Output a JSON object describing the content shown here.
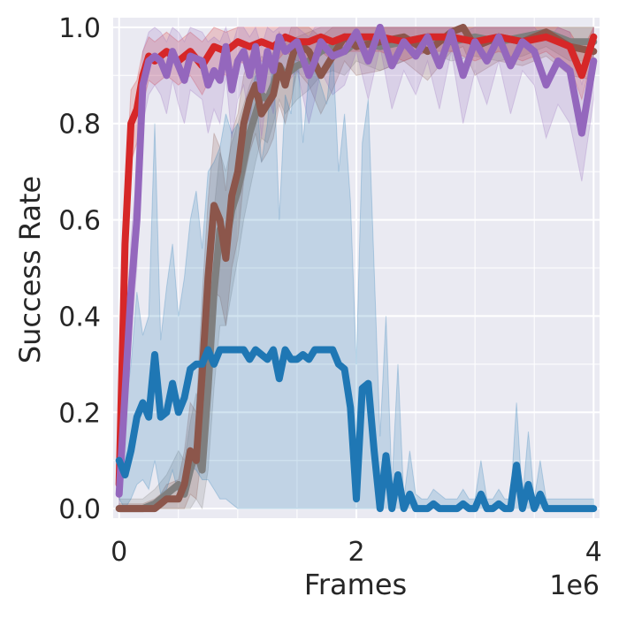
{
  "chart_data": {
    "type": "line",
    "xlabel": "Frames",
    "ylabel": "Success Rate",
    "x_multiplier_label": "1e6",
    "xlim": [
      -0.05,
      4.05
    ],
    "ylim": [
      -0.02,
      1.02
    ],
    "x_ticks": [
      {
        "value": 0,
        "label": "0"
      },
      {
        "value": 2,
        "label": "2"
      },
      {
        "value": 4,
        "label": "4"
      }
    ],
    "y_ticks": [
      {
        "value": 0.0,
        "label": "0.0"
      },
      {
        "value": 0.2,
        "label": "0.2"
      },
      {
        "value": 0.4,
        "label": "0.4"
      },
      {
        "value": 0.6,
        "label": "0.6"
      },
      {
        "value": 0.8,
        "label": "0.8"
      },
      {
        "value": 1.0,
        "label": "1.0"
      }
    ],
    "grid": true,
    "legend": "none",
    "series": [
      {
        "color": "#7f7f7f",
        "x": [
          0,
          0.1,
          0.2,
          0.3,
          0.4,
          0.5,
          0.55,
          0.6,
          0.65,
          0.7,
          0.75,
          0.8,
          0.85,
          0.9,
          0.95,
          1.0,
          1.05,
          1.1,
          1.15,
          1.2,
          1.25,
          1.3,
          1.35,
          1.4,
          1.5,
          1.6,
          1.7,
          1.8,
          1.9,
          2.0,
          2.2,
          2.4,
          2.6,
          2.8,
          3.0,
          3.2,
          3.4,
          3.6,
          3.8,
          4.0
        ],
        "y": [
          0.0,
          0.0,
          0.0,
          0.01,
          0.03,
          0.05,
          0.03,
          0.08,
          0.12,
          0.08,
          0.25,
          0.45,
          0.58,
          0.55,
          0.62,
          0.66,
          0.72,
          0.78,
          0.82,
          0.86,
          0.85,
          0.88,
          0.92,
          0.9,
          0.92,
          0.93,
          0.95,
          0.96,
          0.95,
          0.97,
          0.96,
          0.97,
          0.98,
          0.97,
          0.98,
          0.97,
          0.98,
          0.99,
          0.97,
          0.97
        ],
        "band_low": [
          0.0,
          0.0,
          0.0,
          0.0,
          0.0,
          0.0,
          0.0,
          0.0,
          0.02,
          0.0,
          0.08,
          0.25,
          0.38,
          0.38,
          0.45,
          0.52,
          0.6,
          0.66,
          0.72,
          0.77,
          0.76,
          0.8,
          0.85,
          0.82,
          0.85,
          0.87,
          0.9,
          0.91,
          0.9,
          0.93,
          0.91,
          0.93,
          0.95,
          0.93,
          0.94,
          0.93,
          0.94,
          0.96,
          0.93,
          0.93
        ],
        "band_high": [
          0.02,
          0.02,
          0.02,
          0.04,
          0.07,
          0.12,
          0.1,
          0.18,
          0.24,
          0.2,
          0.42,
          0.62,
          0.74,
          0.7,
          0.76,
          0.8,
          0.84,
          0.88,
          0.91,
          0.94,
          0.93,
          0.95,
          0.98,
          0.97,
          0.98,
          0.99,
          1.0,
          1.0,
          1.0,
          1.0,
          1.0,
          1.0,
          1.0,
          1.0,
          1.0,
          1.0,
          1.0,
          1.0,
          1.0,
          1.0
        ]
      },
      {
        "color": "#8c564b",
        "x": [
          0,
          0.1,
          0.2,
          0.3,
          0.35,
          0.4,
          0.5,
          0.55,
          0.6,
          0.65,
          0.7,
          0.75,
          0.8,
          0.85,
          0.9,
          0.95,
          1.0,
          1.05,
          1.1,
          1.15,
          1.2,
          1.25,
          1.3,
          1.35,
          1.4,
          1.45,
          1.5,
          1.6,
          1.7,
          1.8,
          1.9,
          2.0,
          2.2,
          2.4,
          2.6,
          2.8,
          2.9,
          3.0,
          3.2,
          3.4,
          3.6,
          3.8,
          4.0
        ],
        "y": [
          0.0,
          0.0,
          0.0,
          0.0,
          0.01,
          0.02,
          0.02,
          0.05,
          0.12,
          0.1,
          0.28,
          0.48,
          0.63,
          0.6,
          0.52,
          0.65,
          0.7,
          0.8,
          0.85,
          0.88,
          0.82,
          0.84,
          0.86,
          0.92,
          0.88,
          0.93,
          0.97,
          0.95,
          0.9,
          0.94,
          0.98,
          0.96,
          0.97,
          0.98,
          0.95,
          0.99,
          1.0,
          0.96,
          0.98,
          0.97,
          0.99,
          0.96,
          0.95
        ],
        "band_low": [
          0.0,
          0.0,
          0.0,
          0.0,
          0.0,
          0.0,
          0.0,
          0.0,
          0.03,
          0.02,
          0.12,
          0.3,
          0.45,
          0.44,
          0.38,
          0.5,
          0.56,
          0.68,
          0.74,
          0.78,
          0.72,
          0.74,
          0.77,
          0.84,
          0.8,
          0.85,
          0.91,
          0.88,
          0.82,
          0.87,
          0.93,
          0.9,
          0.91,
          0.93,
          0.89,
          0.95,
          0.96,
          0.9,
          0.93,
          0.92,
          0.94,
          0.9,
          0.89
        ],
        "band_high": [
          0.01,
          0.01,
          0.01,
          0.02,
          0.03,
          0.05,
          0.06,
          0.12,
          0.22,
          0.2,
          0.44,
          0.64,
          0.78,
          0.75,
          0.66,
          0.78,
          0.82,
          0.9,
          0.94,
          0.96,
          0.92,
          0.93,
          0.94,
          0.99,
          0.96,
          1.0,
          1.0,
          1.0,
          0.98,
          1.0,
          1.0,
          1.0,
          1.0,
          1.0,
          1.0,
          1.0,
          1.0,
          1.0,
          1.0,
          1.0,
          1.0,
          1.0,
          1.0
        ]
      },
      {
        "color": "#d62728",
        "x": [
          0,
          0.05,
          0.1,
          0.15,
          0.2,
          0.25,
          0.3,
          0.4,
          0.5,
          0.6,
          0.7,
          0.8,
          0.9,
          1.0,
          1.1,
          1.2,
          1.3,
          1.4,
          1.5,
          1.6,
          1.7,
          1.8,
          1.9,
          2.0,
          2.2,
          2.4,
          2.6,
          2.8,
          3.0,
          3.2,
          3.4,
          3.6,
          3.7,
          3.8,
          3.9,
          4.0
        ],
        "y": [
          0.05,
          0.55,
          0.8,
          0.83,
          0.9,
          0.94,
          0.93,
          0.95,
          0.93,
          0.95,
          0.92,
          0.96,
          0.95,
          0.97,
          0.96,
          0.97,
          0.96,
          0.98,
          0.97,
          0.97,
          0.98,
          0.97,
          0.98,
          0.98,
          0.98,
          0.97,
          0.98,
          0.98,
          0.97,
          0.98,
          0.97,
          0.98,
          0.97,
          0.96,
          0.9,
          0.98
        ],
        "band_low": [
          0.02,
          0.45,
          0.72,
          0.76,
          0.84,
          0.89,
          0.88,
          0.9,
          0.88,
          0.9,
          0.86,
          0.91,
          0.9,
          0.93,
          0.92,
          0.93,
          0.92,
          0.95,
          0.93,
          0.93,
          0.95,
          0.93,
          0.95,
          0.95,
          0.95,
          0.93,
          0.95,
          0.95,
          0.93,
          0.95,
          0.93,
          0.95,
          0.93,
          0.92,
          0.85,
          0.95
        ],
        "band_high": [
          0.08,
          0.64,
          0.87,
          0.89,
          0.95,
          0.98,
          0.97,
          0.99,
          0.97,
          0.99,
          0.97,
          1.0,
          0.99,
          1.0,
          1.0,
          1.0,
          1.0,
          1.0,
          1.0,
          1.0,
          1.0,
          1.0,
          1.0,
          1.0,
          1.0,
          1.0,
          1.0,
          1.0,
          1.0,
          1.0,
          1.0,
          1.0,
          1.0,
          0.99,
          0.95,
          1.0
        ]
      },
      {
        "color": "#9467bd",
        "x": [
          0,
          0.1,
          0.15,
          0.2,
          0.25,
          0.3,
          0.35,
          0.4,
          0.45,
          0.5,
          0.55,
          0.6,
          0.7,
          0.75,
          0.8,
          0.85,
          0.9,
          0.95,
          1.0,
          1.05,
          1.1,
          1.15,
          1.2,
          1.25,
          1.3,
          1.35,
          1.4,
          1.5,
          1.6,
          1.65,
          1.7,
          1.8,
          1.9,
          2.0,
          2.1,
          2.2,
          2.3,
          2.4,
          2.5,
          2.6,
          2.7,
          2.8,
          2.9,
          3.0,
          3.1,
          3.2,
          3.3,
          3.4,
          3.5,
          3.6,
          3.7,
          3.8,
          3.9,
          4.0
        ],
        "y": [
          0.03,
          0.45,
          0.6,
          0.88,
          0.93,
          0.94,
          0.93,
          0.9,
          0.95,
          0.92,
          0.89,
          0.94,
          0.93,
          0.88,
          0.91,
          0.89,
          0.96,
          0.87,
          0.93,
          0.95,
          0.9,
          0.96,
          0.87,
          0.95,
          0.91,
          0.98,
          0.95,
          0.97,
          0.9,
          0.93,
          0.97,
          0.94,
          0.95,
          0.99,
          0.93,
          1.0,
          0.92,
          0.97,
          0.94,
          0.98,
          0.92,
          0.99,
          0.9,
          0.97,
          0.93,
          0.98,
          0.92,
          0.97,
          0.95,
          0.88,
          0.93,
          0.91,
          0.78,
          0.93
        ],
        "band_low": [
          0.0,
          0.35,
          0.5,
          0.8,
          0.86,
          0.88,
          0.86,
          0.82,
          0.89,
          0.84,
          0.8,
          0.87,
          0.85,
          0.78,
          0.83,
          0.8,
          0.9,
          0.77,
          0.85,
          0.88,
          0.8,
          0.9,
          0.77,
          0.87,
          0.82,
          0.93,
          0.88,
          0.91,
          0.8,
          0.85,
          0.91,
          0.86,
          0.88,
          0.95,
          0.85,
          0.96,
          0.83,
          0.91,
          0.86,
          0.93,
          0.83,
          0.95,
          0.8,
          0.91,
          0.84,
          0.93,
          0.82,
          0.91,
          0.88,
          0.77,
          0.84,
          0.8,
          0.68,
          0.85
        ],
        "band_high": [
          0.08,
          0.56,
          0.7,
          0.95,
          0.99,
          1.0,
          0.99,
          0.97,
          1.0,
          0.99,
          0.97,
          1.0,
          0.99,
          0.97,
          0.98,
          0.97,
          1.0,
          0.96,
          1.0,
          1.0,
          0.98,
          1.0,
          0.96,
          1.0,
          0.99,
          1.0,
          1.0,
          1.0,
          0.98,
          1.0,
          1.0,
          1.0,
          1.0,
          1.0,
          1.0,
          1.0,
          1.0,
          1.0,
          1.0,
          1.0,
          1.0,
          1.0,
          0.99,
          1.0,
          1.0,
          1.0,
          1.0,
          1.0,
          1.0,
          0.97,
          1.0,
          0.99,
          0.88,
          1.0
        ]
      },
      {
        "color": "#1f77b4",
        "x": [
          0,
          0.05,
          0.1,
          0.15,
          0.2,
          0.25,
          0.3,
          0.35,
          0.4,
          0.45,
          0.5,
          0.55,
          0.6,
          0.65,
          0.7,
          0.75,
          0.8,
          0.85,
          0.9,
          0.95,
          1.0,
          1.05,
          1.1,
          1.15,
          1.2,
          1.25,
          1.3,
          1.35,
          1.4,
          1.45,
          1.5,
          1.55,
          1.6,
          1.65,
          1.7,
          1.75,
          1.8,
          1.85,
          1.9,
          1.95,
          2.0,
          2.05,
          2.1,
          2.15,
          2.2,
          2.25,
          2.3,
          2.35,
          2.4,
          2.45,
          2.5,
          2.55,
          2.6,
          2.65,
          2.7,
          2.75,
          2.8,
          2.85,
          2.9,
          2.95,
          3.0,
          3.05,
          3.1,
          3.15,
          3.2,
          3.25,
          3.3,
          3.35,
          3.4,
          3.45,
          3.5,
          3.55,
          3.6,
          3.65,
          3.7,
          3.75,
          3.8,
          3.85,
          3.9,
          3.95,
          4.0
        ],
        "y": [
          0.1,
          0.07,
          0.12,
          0.19,
          0.22,
          0.19,
          0.32,
          0.19,
          0.2,
          0.26,
          0.2,
          0.23,
          0.29,
          0.3,
          0.3,
          0.33,
          0.3,
          0.33,
          0.33,
          0.33,
          0.33,
          0.33,
          0.31,
          0.33,
          0.32,
          0.31,
          0.33,
          0.27,
          0.33,
          0.31,
          0.31,
          0.32,
          0.31,
          0.33,
          0.33,
          0.33,
          0.33,
          0.3,
          0.29,
          0.21,
          0.02,
          0.25,
          0.26,
          0.12,
          0.0,
          0.11,
          0.0,
          0.07,
          0.0,
          0.03,
          0.0,
          0.0,
          0.0,
          0.01,
          0.0,
          0.0,
          0.0,
          0.0,
          0.01,
          0.0,
          0.0,
          0.03,
          0.0,
          0.0,
          0.01,
          0.0,
          0.0,
          0.09,
          0.0,
          0.05,
          0.0,
          0.03,
          0.0,
          0.0,
          0.0,
          0.0,
          0.0,
          0.0,
          0.0,
          0.0,
          0.0
        ],
        "band_low": [
          0.02,
          0.0,
          0.02,
          0.05,
          0.06,
          0.04,
          0.1,
          0.03,
          0.04,
          0.08,
          0.03,
          0.06,
          0.09,
          0.08,
          0.06,
          0.06,
          0.04,
          0.02,
          0.02,
          0.01,
          0.0,
          0.0,
          0.0,
          0.0,
          0.0,
          0.0,
          0.0,
          0.0,
          0.0,
          0.0,
          0.0,
          0.0,
          0.0,
          0.0,
          0.0,
          0.0,
          0.0,
          0.0,
          0.0,
          0.0,
          0.0,
          0.0,
          0.0,
          0.0,
          0.0,
          0.0,
          0.0,
          0.0,
          0.0,
          0.0,
          0.0,
          0.0,
          0.0,
          0.0,
          0.0,
          0.0,
          0.0,
          0.0,
          0.0,
          0.0,
          0.0,
          0.0,
          0.0,
          0.0,
          0.0,
          0.0,
          0.0,
          0.0,
          0.0,
          0.0,
          0.0,
          0.0,
          0.0,
          0.0,
          0.0,
          0.0,
          0.0,
          0.0,
          0.0,
          0.0,
          0.0
        ],
        "band_high": [
          0.12,
          0.2,
          0.3,
          0.45,
          0.36,
          0.4,
          0.8,
          0.35,
          0.46,
          0.55,
          0.4,
          0.48,
          0.6,
          0.66,
          0.54,
          0.7,
          0.72,
          0.75,
          0.82,
          0.78,
          0.8,
          0.76,
          0.85,
          0.9,
          0.72,
          0.8,
          0.95,
          0.6,
          0.86,
          0.82,
          0.98,
          0.76,
          0.9,
          0.92,
          0.88,
          0.84,
          0.96,
          0.7,
          0.82,
          0.64,
          0.3,
          0.76,
          0.85,
          0.5,
          0.15,
          0.4,
          0.05,
          0.3,
          0.02,
          0.12,
          0.03,
          0.02,
          0.02,
          0.04,
          0.03,
          0.02,
          0.02,
          0.02,
          0.04,
          0.02,
          0.02,
          0.1,
          0.02,
          0.02,
          0.04,
          0.02,
          0.02,
          0.22,
          0.02,
          0.16,
          0.02,
          0.1,
          0.02,
          0.02,
          0.02,
          0.02,
          0.02,
          0.02,
          0.02,
          0.02,
          0.02
        ]
      }
    ]
  },
  "colors": {
    "plot_background": "#eaeaf2",
    "grid": "#ffffff",
    "text": "#262626"
  }
}
